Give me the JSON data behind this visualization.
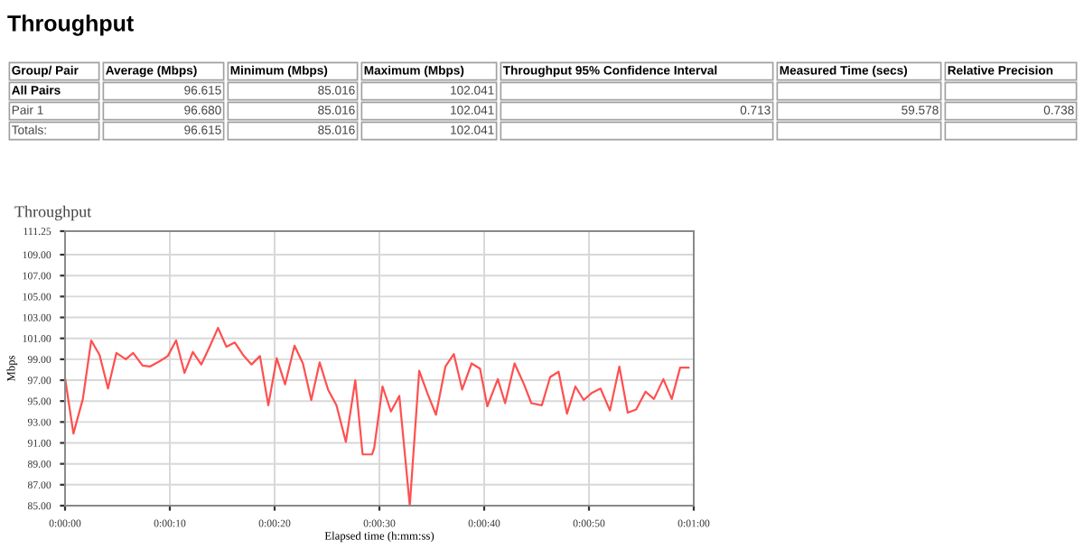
{
  "chart_data": [
    {
      "type": "other",
      "title": "Throughput",
      "ylabel": "Group/ Pair",
      "categories": [
        "Average (Mbps)",
        "Minimum (Mbps)",
        "Maximum (Mbps)",
        "Throughput 95% Confidence Interval",
        "Measured Time (secs)",
        "Relative Precision"
      ],
      "y_categories": [
        "All Pairs",
        "Pair 1",
        "Totals:"
      ],
      "cell_labels": [
        [
          "96.615",
          "85.016",
          "102.041",
          null,
          null,
          null
        ],
        [
          "96.680",
          "85.016",
          "102.041",
          "0.713",
          "59.578",
          "0.738"
        ],
        [
          "96.615",
          "85.016",
          "102.041",
          null,
          null,
          null
        ]
      ]
    },
    {
      "type": "line",
      "title": "Throughput",
      "xlabel": "Elapsed time (h:mm:ss)",
      "ylabel": "Mbps",
      "xlim": [
        0,
        60
      ],
      "ylim": [
        85,
        111.25
      ],
      "xticks": [
        {
          "value": 0,
          "label": "0:00:00"
        },
        {
          "value": 10,
          "label": "0:00:10"
        },
        {
          "value": 20,
          "label": "0:00:20"
        },
        {
          "value": 30,
          "label": "0:00:30"
        },
        {
          "value": 40,
          "label": "0:00:40"
        },
        {
          "value": 50,
          "label": "0:00:50"
        },
        {
          "value": 60,
          "label": "0:01:00"
        }
      ],
      "yticks": [
        {
          "value": 85,
          "label": "85.00"
        },
        {
          "value": 87,
          "label": "87.00"
        },
        {
          "value": 89,
          "label": "89.00"
        },
        {
          "value": 91,
          "label": "91.00"
        },
        {
          "value": 93,
          "label": "93.00"
        },
        {
          "value": 95,
          "label": "95.00"
        },
        {
          "value": 97,
          "label": "97.00"
        },
        {
          "value": 99,
          "label": "99.00"
        },
        {
          "value": 101,
          "label": "101.00"
        },
        {
          "value": 103,
          "label": "103.00"
        },
        {
          "value": 105,
          "label": "105.00"
        },
        {
          "value": 107,
          "label": "107.00"
        },
        {
          "value": 109,
          "label": "109.00"
        },
        {
          "value": 111.25,
          "label": "111.25"
        }
      ],
      "grid": true,
      "marker": "none",
      "line_style": "solid",
      "series": [
        {
          "color": "#ff5050",
          "x": [
            0,
            0.8,
            1.7,
            2.5,
            3.3,
            4.1,
            4.9,
            5.8,
            6.5,
            7.4,
            8.1,
            9.0,
            9.8,
            10.6,
            11.4,
            12.2,
            13.0,
            13.8,
            14.6,
            15.4,
            16.2,
            17.0,
            17.8,
            18.6,
            19.4,
            20.2,
            21.0,
            21.9,
            22.7,
            23.5,
            24.3,
            25.1,
            25.9,
            26.8,
            27.7,
            28.4,
            29.3,
            29.5,
            30.3,
            31.1,
            31.9,
            32.9,
            33.8,
            34.6,
            35.4,
            36.3,
            37.1,
            37.9,
            38.8,
            39.6,
            40.3,
            41.3,
            42.0,
            42.9,
            43.8,
            44.5,
            45.5,
            46.3,
            47.1,
            47.9,
            48.7,
            49.5,
            50.3,
            51.1,
            52.0,
            52.9,
            53.7,
            54.5,
            55.4,
            56.2,
            57.1,
            57.9,
            58.7,
            59.5
          ],
          "values": [
            97.2,
            91.9,
            95.2,
            100.8,
            99.4,
            96.2,
            99.6,
            99.0,
            99.6,
            98.4,
            98.3,
            98.8,
            99.3,
            100.8,
            97.7,
            99.7,
            98.5,
            100.2,
            102.0,
            100.2,
            100.6,
            99.4,
            98.5,
            99.3,
            94.6,
            99.1,
            96.6,
            100.3,
            98.6,
            95.1,
            98.7,
            96.1,
            94.6,
            91.1,
            97.0,
            89.9,
            89.9,
            90.5,
            96.4,
            94.0,
            95.5,
            85.0,
            97.9,
            95.7,
            93.7,
            98.3,
            99.5,
            96.1,
            98.6,
            98.1,
            94.5,
            97.1,
            94.8,
            98.6,
            96.6,
            94.8,
            94.6,
            97.3,
            97.8,
            93.8,
            96.4,
            95.1,
            95.8,
            96.2,
            94.1,
            98.3,
            93.9,
            94.2,
            95.9,
            95.2,
            97.1,
            95.2,
            98.2,
            98.2
          ]
        }
      ]
    }
  ]
}
